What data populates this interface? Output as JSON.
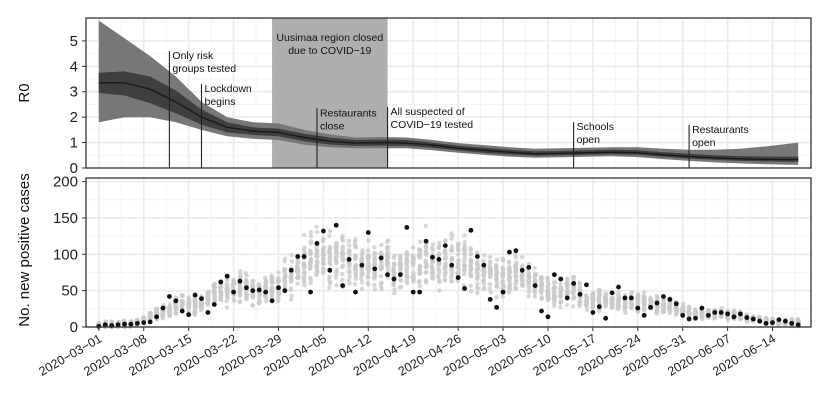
{
  "chart_data": [
    {
      "type": "area",
      "ylabel": "R0",
      "ylim": [
        0,
        5.9
      ],
      "yticks": [
        0,
        1,
        2,
        3,
        4,
        5
      ],
      "grid": true,
      "x_range": [
        "2020-02-28",
        "2020-06-20"
      ],
      "series": [
        {
          "dates": [
            "2020-03-01",
            "2020-03-05",
            "2020-03-09",
            "2020-03-13",
            "2020-03-17",
            "2020-03-21",
            "2020-03-25",
            "2020-03-29",
            "2020-04-02",
            "2020-04-06",
            "2020-04-10",
            "2020-04-14",
            "2020-04-18",
            "2020-04-22",
            "2020-04-26",
            "2020-04-30",
            "2020-05-04",
            "2020-05-08",
            "2020-05-12",
            "2020-05-16",
            "2020-05-20",
            "2020-05-24",
            "2020-05-28",
            "2020-06-01",
            "2020-06-05",
            "2020-06-09",
            "2020-06-13",
            "2020-06-18"
          ],
          "median": [
            3.35,
            3.35,
            3.1,
            2.6,
            2.0,
            1.6,
            1.45,
            1.4,
            1.2,
            1.05,
            0.98,
            1.0,
            0.98,
            0.9,
            0.78,
            0.7,
            0.62,
            0.56,
            0.58,
            0.6,
            0.62,
            0.6,
            0.52,
            0.45,
            0.4,
            0.36,
            0.34,
            0.33
          ],
          "inner_lower": [
            2.95,
            2.85,
            2.55,
            2.15,
            1.7,
            1.4,
            1.3,
            1.25,
            1.05,
            0.92,
            0.87,
            0.88,
            0.87,
            0.8,
            0.69,
            0.6,
            0.53,
            0.48,
            0.5,
            0.52,
            0.54,
            0.52,
            0.44,
            0.37,
            0.32,
            0.28,
            0.26,
            0.24
          ],
          "inner_upper": [
            3.75,
            3.8,
            3.6,
            3.05,
            2.3,
            1.8,
            1.6,
            1.55,
            1.35,
            1.2,
            1.1,
            1.12,
            1.1,
            1.0,
            0.88,
            0.8,
            0.72,
            0.66,
            0.67,
            0.7,
            0.72,
            0.7,
            0.62,
            0.56,
            0.5,
            0.47,
            0.45,
            0.45
          ],
          "outer_lower": [
            1.8,
            2.0,
            2.0,
            1.8,
            1.5,
            1.25,
            1.15,
            1.1,
            0.92,
            0.82,
            0.78,
            0.78,
            0.78,
            0.7,
            0.6,
            0.52,
            0.45,
            0.4,
            0.42,
            0.44,
            0.46,
            0.43,
            0.35,
            0.28,
            0.22,
            0.18,
            0.15,
            0.12
          ],
          "outer_upper": [
            5.8,
            5.1,
            4.4,
            3.6,
            2.6,
            2.0,
            1.8,
            1.75,
            1.5,
            1.32,
            1.2,
            1.22,
            1.2,
            1.1,
            0.98,
            0.9,
            0.82,
            0.76,
            0.78,
            0.8,
            0.82,
            0.82,
            0.76,
            0.72,
            0.72,
            0.76,
            0.85,
            1.0
          ]
        }
      ],
      "shaded_period": {
        "start": "2020-03-28",
        "end": "2020-04-15"
      },
      "annotations": [
        {
          "date": "2020-03-12",
          "top": 4.6,
          "lines": [
            "Only risk",
            "groups tested"
          ]
        },
        {
          "date": "2020-03-17",
          "top": 3.3,
          "lines": [
            "Lockdown",
            "begins"
          ]
        },
        {
          "date": "2020-03-28",
          "top": 5.55,
          "lines": [
            "Uusimaa region closed",
            "due to COVID−19"
          ],
          "centered": true
        },
        {
          "date": "2020-04-04",
          "top": 2.35,
          "lines": [
            "Restaurants",
            "close"
          ]
        },
        {
          "date": "2020-04-15",
          "top": 2.4,
          "lines": [
            "All suspected of",
            "COVID−19 tested"
          ]
        },
        {
          "date": "2020-05-14",
          "top": 1.8,
          "lines": [
            "Schools",
            "open"
          ]
        },
        {
          "date": "2020-06-01",
          "top": 1.7,
          "lines": [
            "Restaurants",
            "open"
          ]
        }
      ]
    },
    {
      "type": "scatter",
      "ylabel": "No. new positive cases",
      "ylim": [
        0,
        205
      ],
      "yticks": [
        0,
        50,
        100,
        150,
        200
      ],
      "grid": true,
      "x_range": [
        "2020-02-28",
        "2020-06-20"
      ],
      "xticks": [
        "2020−03−01",
        "2020−03−08",
        "2020−03−15",
        "2020−03−22",
        "2020−03−29",
        "2020−04−05",
        "2020−04−12",
        "2020−04−19",
        "2020−04−26",
        "2020−05−03",
        "2020−05−10",
        "2020−05−17",
        "2020−05−24",
        "2020−05−31",
        "2020−06−07",
        "2020−06−14"
      ],
      "observed": {
        "dates": [
          "2020-03-01",
          "2020-03-02",
          "2020-03-03",
          "2020-03-04",
          "2020-03-05",
          "2020-03-06",
          "2020-03-07",
          "2020-03-08",
          "2020-03-09",
          "2020-03-10",
          "2020-03-11",
          "2020-03-12",
          "2020-03-13",
          "2020-03-14",
          "2020-03-15",
          "2020-03-16",
          "2020-03-17",
          "2020-03-18",
          "2020-03-19",
          "2020-03-20",
          "2020-03-21",
          "2020-03-22",
          "2020-03-23",
          "2020-03-24",
          "2020-03-25",
          "2020-03-26",
          "2020-03-27",
          "2020-03-28",
          "2020-03-29",
          "2020-03-30",
          "2020-03-31",
          "2020-04-01",
          "2020-04-02",
          "2020-04-03",
          "2020-04-04",
          "2020-04-05",
          "2020-04-06",
          "2020-04-07",
          "2020-04-08",
          "2020-04-09",
          "2020-04-10",
          "2020-04-11",
          "2020-04-12",
          "2020-04-13",
          "2020-04-14",
          "2020-04-15",
          "2020-04-16",
          "2020-04-17",
          "2020-04-18",
          "2020-04-19",
          "2020-04-20",
          "2020-04-21",
          "2020-04-22",
          "2020-04-23",
          "2020-04-24",
          "2020-04-25",
          "2020-04-26",
          "2020-04-27",
          "2020-04-28",
          "2020-04-29",
          "2020-04-30",
          "2020-05-01",
          "2020-05-02",
          "2020-05-03",
          "2020-05-04",
          "2020-05-05",
          "2020-05-06",
          "2020-05-07",
          "2020-05-08",
          "2020-05-09",
          "2020-05-10",
          "2020-05-11",
          "2020-05-12",
          "2020-05-13",
          "2020-05-14",
          "2020-05-15",
          "2020-05-16",
          "2020-05-17",
          "2020-05-18",
          "2020-05-19",
          "2020-05-20",
          "2020-05-21",
          "2020-05-22",
          "2020-05-23",
          "2020-05-24",
          "2020-05-25",
          "2020-05-26",
          "2020-05-27",
          "2020-05-28",
          "2020-05-29",
          "2020-05-30",
          "2020-05-31",
          "2020-06-01",
          "2020-06-02",
          "2020-06-03",
          "2020-06-04",
          "2020-06-05",
          "2020-06-06",
          "2020-06-07",
          "2020-06-08",
          "2020-06-09",
          "2020-06-10",
          "2020-06-11",
          "2020-06-12",
          "2020-06-13",
          "2020-06-14",
          "2020-06-15",
          "2020-06-16",
          "2020-06-17",
          "2020-06-18"
        ],
        "values": [
          1,
          3,
          2,
          3,
          4,
          4,
          5,
          6,
          7,
          14,
          26,
          42,
          36,
          22,
          17,
          44,
          39,
          20,
          31,
          62,
          70,
          48,
          63,
          54,
          50,
          51,
          48,
          36,
          54,
          50,
          78,
          97,
          97,
          48,
          115,
          132,
          78,
          140,
          57,
          93,
          48,
          85,
          130,
          80,
          95,
          72,
          66,
          72,
          137,
          48,
          48,
          118,
          96,
          93,
          112,
          85,
          68,
          53,
          133,
          97,
          85,
          38,
          27,
          48,
          103,
          105,
          78,
          82,
          57,
          22,
          14,
          72,
          66,
          40,
          60,
          45,
          58,
          20,
          28,
          12,
          47,
          55,
          40,
          40,
          26,
          16,
          27,
          33,
          42,
          38,
          32,
          16,
          11,
          12,
          26,
          16,
          20,
          20,
          18,
          14,
          18,
          13,
          11,
          8,
          5,
          6,
          10,
          8,
          5,
          3
        ]
      }
    }
  ]
}
